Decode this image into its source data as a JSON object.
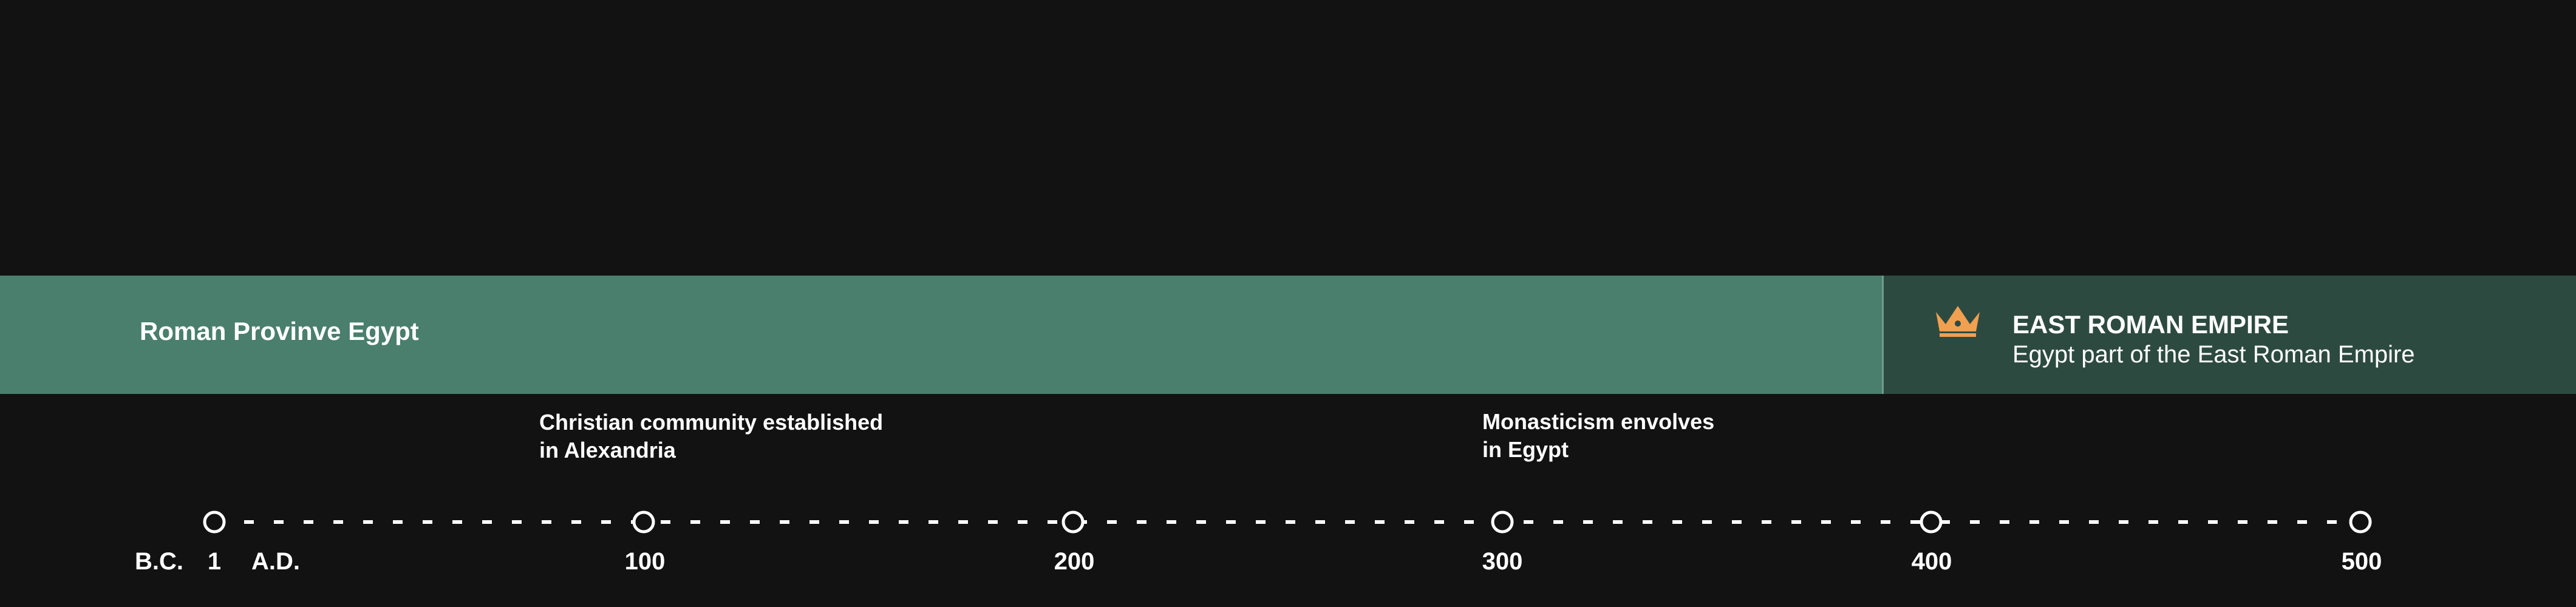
{
  "bands": {
    "province": {
      "label": "Roman Provinve Egypt",
      "color": "#4a7e6d"
    },
    "east": {
      "title": "EAST ROMAN EMPIRE",
      "subtitle": "Egypt part of the East Roman Empire",
      "color": "#2d4a40",
      "icon": "crown-icon",
      "icon_color": "#f0a050"
    }
  },
  "events": [
    {
      "line1": "Christian community established",
      "line2": "in Alexandria"
    },
    {
      "line1": "Monasticism envolves",
      "line2": "in Egypt"
    }
  ],
  "axis": {
    "era_bc": "B.C.",
    "era_ad": "A.D.",
    "ticks": [
      "1",
      "100",
      "200",
      "300",
      "400",
      "500"
    ]
  }
}
